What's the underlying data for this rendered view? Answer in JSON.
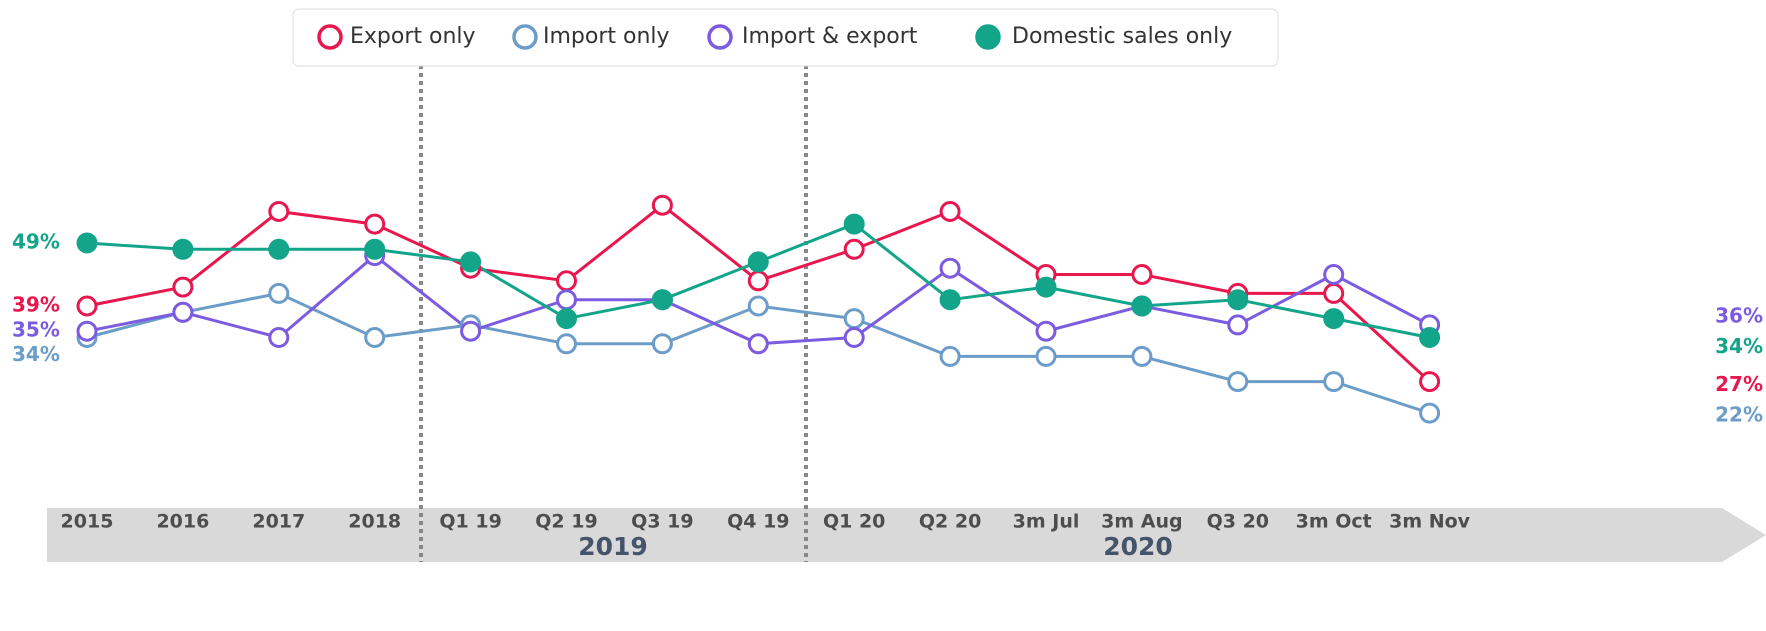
{
  "chart_data": {
    "type": "line",
    "categories": [
      "2015",
      "2016",
      "2017",
      "2018",
      "Q1 19",
      "Q2 19",
      "Q3 19",
      "Q4 19",
      "Q1 20",
      "Q2 20",
      "3m Jul",
      "3m Aug",
      "Q3 20",
      "3m Oct",
      "3m Nov"
    ],
    "groups": [
      "2019",
      "2020"
    ],
    "ylim": [
      20,
      60
    ],
    "series": [
      {
        "name": "Export only",
        "color": "#e8174e",
        "filled": false,
        "values": [
          39,
          42,
          54,
          52,
          45,
          43,
          55,
          43,
          48,
          54,
          44,
          44,
          41,
          41,
          27
        ],
        "value_labels": [
          "39%",
          null,
          null,
          null,
          null,
          null,
          null,
          null,
          null,
          null,
          null,
          null,
          null,
          null,
          "27%"
        ]
      },
      {
        "name": "Import only",
        "color": "#6b9dc8",
        "filled": false,
        "values": [
          34,
          38,
          41,
          34,
          36,
          33,
          33,
          39,
          37,
          31,
          31,
          31,
          27,
          27,
          22
        ],
        "value_labels": [
          "34%",
          null,
          null,
          null,
          null,
          null,
          null,
          null,
          null,
          null,
          null,
          null,
          null,
          null,
          "22%"
        ]
      },
      {
        "name": "Import & export",
        "color": "#7b5ce0",
        "filled": false,
        "values": [
          35,
          38,
          34,
          47,
          35,
          40,
          40,
          33,
          34,
          45,
          35,
          39,
          36,
          44,
          36
        ],
        "value_labels": [
          "35%",
          null,
          null,
          null,
          null,
          null,
          null,
          null,
          null,
          null,
          null,
          null,
          null,
          null,
          "36%"
        ]
      },
      {
        "name": "Domestic sales only",
        "color": "#13a589",
        "filled": true,
        "values": [
          49,
          48,
          48,
          48,
          46,
          37,
          40,
          46,
          52,
          40,
          42,
          39,
          40,
          37,
          34
        ],
        "value_labels": [
          "49%",
          null,
          null,
          null,
          null,
          null,
          null,
          null,
          null,
          null,
          null,
          null,
          null,
          null,
          "34%"
        ]
      }
    ]
  }
}
